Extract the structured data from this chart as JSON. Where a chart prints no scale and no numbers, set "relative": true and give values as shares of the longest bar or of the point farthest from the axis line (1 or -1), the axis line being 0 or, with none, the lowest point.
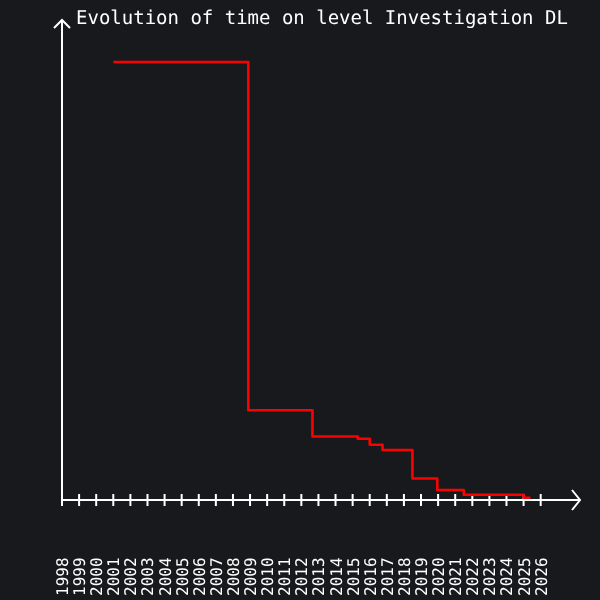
{
  "chart_data": {
    "type": "step",
    "title": "Evolution of time on level Investigation DL",
    "relative": true,
    "x": [
      2001,
      2008.9,
      2012.65,
      2015.3,
      2016.0,
      2016.75,
      2018.5,
      2019.95,
      2021.5,
      2025.0,
      2025.4
    ],
    "series": [
      {
        "color": "#ff0000",
        "values": [
          1,
          0.205,
          0.145,
          0.14,
          0.126,
          0.114,
          0.049,
          0.023,
          0.012,
          0.005,
          0.005
        ]
      }
    ],
    "xlim": [
      1998,
      2028.3
    ],
    "xticks": [
      1998,
      1999,
      2000,
      2001,
      2002,
      2003,
      2004,
      2005,
      2006,
      2007,
      2008,
      2009,
      2010,
      2011,
      2012,
      2013,
      2014,
      2015,
      2016,
      2017,
      2018,
      2019,
      2020,
      2021,
      2022,
      2023,
      2024,
      2025,
      2026
    ]
  }
}
